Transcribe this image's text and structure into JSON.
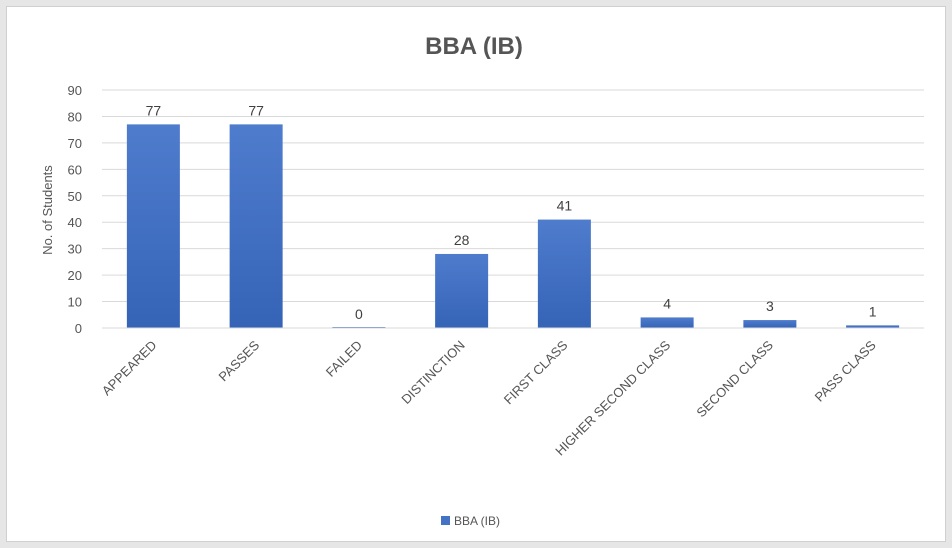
{
  "chart_data": {
    "type": "bar",
    "title": "BBA (IB)",
    "ylabel": "No. of Students",
    "xlabel": "",
    "categories": [
      "APPEARED",
      "PASSES",
      "FAILED",
      "DISTINCTION",
      "FIRST CLASS",
      "HIGHER SECOND CLASS",
      "SECOND CLASS",
      "PASS CLASS"
    ],
    "series": [
      {
        "name": "BBA (IB)",
        "values": [
          77,
          77,
          0,
          28,
          41,
          4,
          3,
          1
        ],
        "color": "#4472c4"
      }
    ],
    "ylim": [
      0,
      90
    ],
    "yticks": [
      0,
      10,
      20,
      30,
      40,
      50,
      60,
      70,
      80,
      90
    ],
    "grid": true,
    "legend": "bottom"
  }
}
